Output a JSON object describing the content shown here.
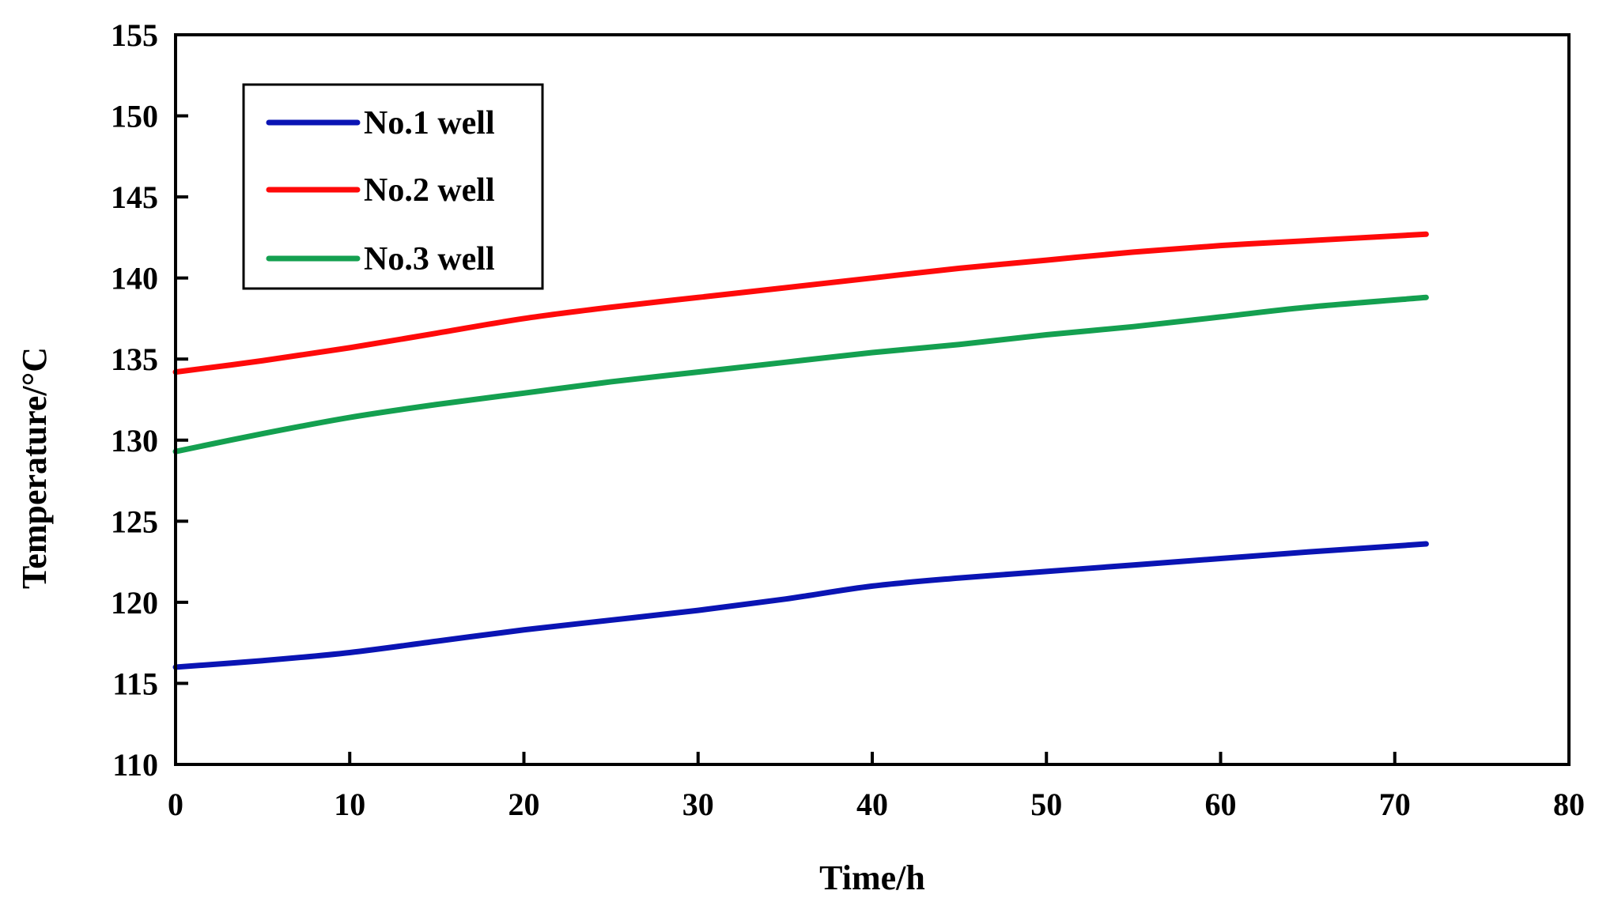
{
  "chart_data": {
    "type": "line",
    "title": "",
    "xlabel": "Time/h",
    "ylabel": "Temperature/°C",
    "xlim": [
      0,
      80
    ],
    "ylim": [
      110,
      155
    ],
    "xticks": [
      "0",
      "10",
      "20",
      "30",
      "40",
      "50",
      "60",
      "70",
      "80"
    ],
    "yticks": [
      "110",
      "115",
      "120",
      "125",
      "130",
      "135",
      "140",
      "145",
      "150",
      "155"
    ],
    "grid": false,
    "legend_position": "top-left",
    "series": [
      {
        "name": "No.1 well",
        "color": "#0a14b4",
        "x": [
          0,
          5,
          10,
          15,
          20,
          25,
          30,
          35,
          40,
          45,
          50,
          55,
          60,
          65,
          71.8
        ],
        "y": [
          116.0,
          116.4,
          116.9,
          117.6,
          118.3,
          118.9,
          119.5,
          120.2,
          121.0,
          121.5,
          121.9,
          122.3,
          122.7,
          123.1,
          123.6
        ]
      },
      {
        "name": "No.2 well",
        "color": "#ff0a0a",
        "x": [
          0,
          5,
          10,
          15,
          20,
          25,
          30,
          35,
          40,
          45,
          50,
          55,
          60,
          65,
          71.8
        ],
        "y": [
          134.2,
          134.9,
          135.7,
          136.6,
          137.5,
          138.2,
          138.8,
          139.4,
          140.0,
          140.6,
          141.1,
          141.6,
          142.0,
          142.3,
          142.7
        ]
      },
      {
        "name": "No.3 well",
        "color": "#14a050",
        "x": [
          0,
          5,
          10,
          15,
          20,
          25,
          30,
          35,
          40,
          45,
          50,
          55,
          60,
          65,
          71.8
        ],
        "y": [
          129.3,
          130.4,
          131.4,
          132.2,
          132.9,
          133.6,
          134.2,
          134.8,
          135.4,
          135.9,
          136.5,
          137.0,
          137.6,
          138.2,
          138.8
        ]
      }
    ]
  }
}
